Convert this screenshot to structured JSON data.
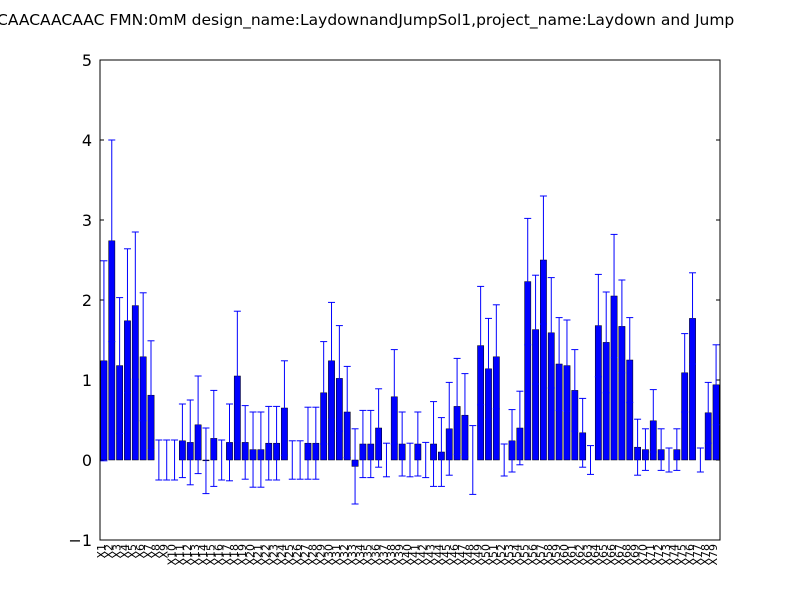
{
  "chart_data": {
    "type": "bar",
    "title": "CAACAACAAC  FMN:0mM  design_name:LaydownandJumpSol1,project_name:Laydown and Jump",
    "categories": [
      "X1",
      "X2",
      "X3",
      "X4",
      "X5",
      "X6",
      "X7",
      "X8",
      "X9",
      "X10",
      "X11",
      "X12",
      "X13",
      "X14",
      "X15",
      "X16",
      "X17",
      "X18",
      "X19",
      "X20",
      "X21",
      "X22",
      "X23",
      "X24",
      "X25",
      "X26",
      "X27",
      "X28",
      "X29",
      "X30",
      "X31",
      "X32",
      "X33",
      "X34",
      "X35",
      "X36",
      "X37",
      "X38",
      "X39",
      "X40",
      "X41",
      "X42",
      "X43",
      "X44",
      "X45",
      "X46",
      "X47",
      "X48",
      "X49",
      "X50",
      "X51",
      "X52",
      "X53",
      "X54",
      "X55",
      "X56",
      "X57",
      "X58",
      "X59",
      "X60",
      "X61",
      "X62",
      "X63",
      "X64",
      "X65",
      "X66",
      "X67",
      "X68",
      "X69",
      "X70",
      "X71",
      "X72",
      "X73",
      "X74",
      "X75",
      "X76",
      "X77",
      "X78",
      "X79"
    ],
    "values": [
      1.24,
      2.74,
      1.18,
      1.74,
      1.93,
      1.29,
      0.81,
      0,
      0,
      0,
      0.24,
      0.22,
      0.44,
      -0.01,
      0.27,
      0,
      0.22,
      1.05,
      0.22,
      0.13,
      0.13,
      0.21,
      0.21,
      0.65,
      0,
      0,
      0.21,
      0.21,
      0.84,
      1.24,
      1.02,
      0.6,
      -0.08,
      0.2,
      0.2,
      0.4,
      0,
      0.79,
      0.2,
      0,
      0.2,
      0,
      0.2,
      0.1,
      0.39,
      0.67,
      0.56,
      0,
      1.43,
      1.14,
      1.29,
      0,
      0.24,
      0.4,
      2.23,
      1.63,
      2.5,
      1.59,
      1.2,
      1.18,
      0.87,
      0.34,
      0,
      1.68,
      1.47,
      2.05,
      1.67,
      1.25,
      0.16,
      0.13,
      0.49,
      0.13,
      0,
      0.13,
      1.09,
      1.77,
      0,
      0.59,
      0.94
    ],
    "errors": [
      1.25,
      1.26,
      0.85,
      0.9,
      0.92,
      0.8,
      0.68,
      0.25,
      0.25,
      0.25,
      0.46,
      0.53,
      0.61,
      0.41,
      0.6,
      0.25,
      0.48,
      0.81,
      0.46,
      0.47,
      0.47,
      0.46,
      0.46,
      0.59,
      0.24,
      0.24,
      0.45,
      0.45,
      0.64,
      0.73,
      0.66,
      0.57,
      0.47,
      0.42,
      0.42,
      0.49,
      0.21,
      0.59,
      0.4,
      0.21,
      0.4,
      0.22,
      0.53,
      0.43,
      0.58,
      0.6,
      0.52,
      0.43,
      0.74,
      0.63,
      0.65,
      0.2,
      0.39,
      0.46,
      0.79,
      0.68,
      0.8,
      0.69,
      0.58,
      0.57,
      0.51,
      0.43,
      0.18,
      0.64,
      0.63,
      0.77,
      0.58,
      0.53,
      0.35,
      0.26,
      0.39,
      0.26,
      0.15,
      0.26,
      0.49,
      0.57,
      0.15,
      0.38,
      0.5
    ],
    "color": "#0000ff",
    "ylim": [
      -1,
      5
    ],
    "yticks": [
      {
        "value": -1,
        "label": "−1"
      },
      0,
      1,
      2,
      3,
      4,
      5
    ]
  }
}
